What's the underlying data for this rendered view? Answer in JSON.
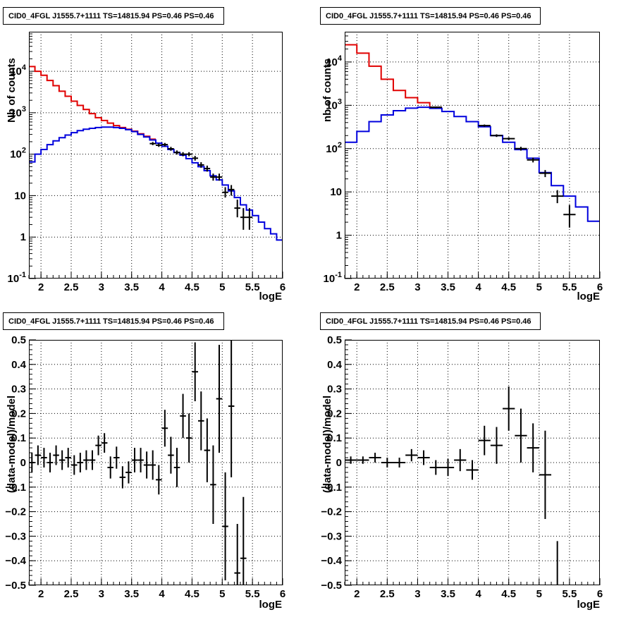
{
  "chart_data": [
    {
      "type": "line",
      "title": "CID0_4FGL J1555.7+1111 TS=14815.94 PS=0.46 PS=0.46",
      "xlabel": "logE",
      "ylabel": "Nb of counts",
      "xlim": [
        1.8,
        6.0
      ],
      "ylim": [
        0.1,
        90000
      ],
      "log_y": true,
      "grid": true,
      "x_ticks": [
        "2",
        "2.5",
        "3",
        "3.5",
        "4",
        "4.5",
        "5",
        "5.5",
        "6"
      ],
      "y_ticks": [
        "10^-1",
        "1",
        "10",
        "10^2",
        "10^3",
        "10^4"
      ],
      "bin_edges": [
        1.8,
        1.9,
        2.0,
        2.1,
        2.2,
        2.3,
        2.4,
        2.5,
        2.6,
        2.7,
        2.8,
        2.9,
        3.0,
        3.1,
        3.2,
        3.3,
        3.4,
        3.5,
        3.6,
        3.7,
        3.8,
        3.9,
        4.0,
        4.1,
        4.2,
        4.3,
        4.4,
        4.5,
        4.6,
        4.7,
        4.8,
        4.9,
        5.0,
        5.1,
        5.2,
        5.3,
        5.4,
        5.5,
        5.6,
        5.7,
        5.8,
        5.9,
        6.0
      ],
      "series": [
        {
          "kind": "step",
          "color": "#e00000",
          "values": [
            13000,
            10000,
            8000,
            6000,
            4500,
            3300,
            2500,
            1900,
            1500,
            1200,
            950,
            760,
            650,
            560,
            490,
            440,
            400,
            360,
            310,
            270,
            230
          ]
        },
        {
          "kind": "step",
          "color": "#0000dd",
          "values": [
            65,
            100,
            130,
            170,
            210,
            250,
            290,
            330,
            370,
            400,
            420,
            440,
            450,
            450,
            440,
            420,
            390,
            350,
            300,
            260,
            220,
            185,
            155,
            130,
            110,
            95,
            78,
            62,
            50,
            40,
            30,
            24,
            18,
            13,
            9,
            6,
            4.5,
            3.3,
            2.3,
            1.6,
            1.2,
            0.85
          ]
        },
        {
          "kind": "points",
          "color": "#000000",
          "xerr": 0.05,
          "points": [
            {
              "x": 3.85,
              "y": 180,
              "lo": 165,
              "hi": 197
            },
            {
              "x": 3.95,
              "y": 165,
              "lo": 150,
              "hi": 182
            },
            {
              "x": 4.05,
              "y": 170,
              "lo": 155,
              "hi": 187
            },
            {
              "x": 4.15,
              "y": 135,
              "lo": 121,
              "hi": 150
            },
            {
              "x": 4.25,
              "y": 110,
              "lo": 98,
              "hi": 123
            },
            {
              "x": 4.35,
              "y": 100,
              "lo": 89,
              "hi": 112
            },
            {
              "x": 4.45,
              "y": 100,
              "lo": 89,
              "hi": 112
            },
            {
              "x": 4.55,
              "y": 80,
              "lo": 70,
              "hi": 91
            },
            {
              "x": 4.65,
              "y": 55,
              "lo": 47,
              "hi": 64
            },
            {
              "x": 4.75,
              "y": 45,
              "lo": 38,
              "hi": 53
            },
            {
              "x": 4.85,
              "y": 28,
              "lo": 23,
              "hi": 34
            },
            {
              "x": 4.95,
              "y": 28,
              "lo": 23,
              "hi": 34
            },
            {
              "x": 5.05,
              "y": 12,
              "lo": 9,
              "hi": 16
            },
            {
              "x": 5.15,
              "y": 14,
              "lo": 10,
              "hi": 18
            },
            {
              "x": 5.25,
              "y": 5,
              "lo": 3,
              "hi": 8
            },
            {
              "x": 5.35,
              "y": 3,
              "lo": 1.5,
              "hi": 5
            },
            {
              "x": 5.45,
              "y": 3,
              "lo": 1.5,
              "hi": 5
            }
          ]
        }
      ]
    },
    {
      "type": "line",
      "title": "CID0_4FGL J1555.7+1111 TS=14815.94 PS=0.46 PS=0.46",
      "xlabel": "logE",
      "ylabel": "nb of counts",
      "xlim": [
        1.8,
        6.0
      ],
      "ylim": [
        0.1,
        50000
      ],
      "log_y": true,
      "grid": true,
      "x_ticks": [
        "2",
        "2.5",
        "3",
        "3.5",
        "4",
        "4.5",
        "5",
        "5.5",
        "6"
      ],
      "y_ticks": [
        "10^-1",
        "1",
        "10",
        "10^2",
        "10^3",
        "10^4"
      ],
      "bin_edges": [
        1.8,
        2.0,
        2.2,
        2.4,
        2.6,
        2.8,
        3.0,
        3.2,
        3.4,
        3.6,
        3.8,
        4.0,
        4.2,
        4.4,
        4.6,
        4.8,
        5.0,
        5.2,
        5.4,
        5.6,
        5.8,
        6.0
      ],
      "series": [
        {
          "kind": "step",
          "color": "#e00000",
          "values": [
            25000,
            16000,
            8000,
            4000,
            2200,
            1500,
            1150,
            900
          ]
        },
        {
          "kind": "step",
          "color": "#0000dd",
          "values": [
            140,
            250,
            420,
            600,
            750,
            860,
            900,
            850,
            720,
            550,
            420,
            320,
            200,
            140,
            95,
            60,
            28,
            14,
            8,
            4.5,
            2.1
          ]
        },
        {
          "kind": "points",
          "color": "#000000",
          "xerr": 0.1,
          "points": [
            {
              "x": 3.3,
              "y": 900,
              "lo": 860,
              "hi": 940
            },
            {
              "x": 4.1,
              "y": 340,
              "lo": 320,
              "hi": 360
            },
            {
              "x": 4.3,
              "y": 200,
              "lo": 186,
              "hi": 214
            },
            {
              "x": 4.5,
              "y": 170,
              "lo": 157,
              "hi": 183
            },
            {
              "x": 4.7,
              "y": 100,
              "lo": 90,
              "hi": 110
            },
            {
              "x": 4.9,
              "y": 55,
              "lo": 48,
              "hi": 62
            },
            {
              "x": 5.1,
              "y": 27,
              "lo": 22,
              "hi": 32
            },
            {
              "x": 5.3,
              "y": 8,
              "lo": 5.5,
              "hi": 11
            },
            {
              "x": 5.5,
              "y": 3,
              "lo": 1.5,
              "hi": 5
            }
          ]
        }
      ]
    },
    {
      "type": "scatter",
      "title": "CID0_4FGL J1555.7+1111 TS=14815.94 PS=0.46 PS=0.46",
      "xlabel": "logE",
      "ylabel": "(data-model)/model",
      "xlim": [
        1.8,
        6.0
      ],
      "ylim": [
        -0.5,
        0.5
      ],
      "grid": true,
      "x_ticks": [
        "2",
        "2.5",
        "3",
        "3.5",
        "4",
        "4.5",
        "5",
        "5.5",
        "6"
      ],
      "y_ticks": [
        "−0.5",
        "−0.4",
        "−0.3",
        "−0.2",
        "−0.1",
        "0",
        "0.1",
        "0.2",
        "0.3",
        "0.4",
        "0.5"
      ],
      "xerr": 0.05,
      "points": [
        {
          "x": 1.85,
          "y": 0.0,
          "err": 0.04
        },
        {
          "x": 1.95,
          "y": 0.03,
          "err": 0.04
        },
        {
          "x": 2.05,
          "y": 0.02,
          "err": 0.04
        },
        {
          "x": 2.15,
          "y": 0.0,
          "err": 0.04
        },
        {
          "x": 2.25,
          "y": 0.03,
          "err": 0.04
        },
        {
          "x": 2.35,
          "y": 0.01,
          "err": 0.04
        },
        {
          "x": 2.45,
          "y": 0.02,
          "err": 0.04
        },
        {
          "x": 2.55,
          "y": -0.01,
          "err": 0.04
        },
        {
          "x": 2.65,
          "y": 0.0,
          "err": 0.04
        },
        {
          "x": 2.75,
          "y": 0.01,
          "err": 0.04
        },
        {
          "x": 2.85,
          "y": 0.01,
          "err": 0.04
        },
        {
          "x": 2.95,
          "y": 0.07,
          "err": 0.04
        },
        {
          "x": 3.05,
          "y": 0.08,
          "err": 0.04
        },
        {
          "x": 3.15,
          "y": -0.02,
          "err": 0.045
        },
        {
          "x": 3.25,
          "y": 0.02,
          "err": 0.045
        },
        {
          "x": 3.35,
          "y": -0.06,
          "err": 0.045
        },
        {
          "x": 3.45,
          "y": -0.04,
          "err": 0.045
        },
        {
          "x": 3.55,
          "y": 0.01,
          "err": 0.05
        },
        {
          "x": 3.65,
          "y": 0.01,
          "err": 0.05
        },
        {
          "x": 3.75,
          "y": -0.01,
          "err": 0.055
        },
        {
          "x": 3.85,
          "y": -0.01,
          "err": 0.06
        },
        {
          "x": 3.95,
          "y": -0.07,
          "err": 0.06
        },
        {
          "x": 4.05,
          "y": 0.14,
          "err": 0.075
        },
        {
          "x": 4.15,
          "y": 0.03,
          "err": 0.075
        },
        {
          "x": 4.25,
          "y": -0.02,
          "err": 0.08
        },
        {
          "x": 4.35,
          "y": 0.19,
          "err": 0.09
        },
        {
          "x": 4.45,
          "y": 0.1,
          "err": 0.1
        },
        {
          "x": 4.55,
          "y": 0.37,
          "err": 0.12
        },
        {
          "x": 4.65,
          "y": 0.17,
          "err": 0.12
        },
        {
          "x": 4.75,
          "y": 0.05,
          "err": 0.13
        },
        {
          "x": 4.85,
          "y": -0.09,
          "err": 0.16
        },
        {
          "x": 4.95,
          "y": 0.26,
          "err": 0.22
        },
        {
          "x": 5.05,
          "y": -0.26,
          "err": 0.22
        },
        {
          "x": 5.15,
          "y": 0.23,
          "err": 0.29
        },
        {
          "x": 5.25,
          "y": -0.45,
          "err": 0.2
        },
        {
          "x": 5.35,
          "y": -0.39,
          "err": 0.25
        }
      ]
    },
    {
      "type": "scatter",
      "title": "CID0_4FGL J1555.7+1111 TS=14815.94 PS=0.46 PS=0.46",
      "xlabel": "logE",
      "ylabel": "(data-model)/model",
      "xlim": [
        1.8,
        6.0
      ],
      "ylim": [
        -0.5,
        0.5
      ],
      "grid": true,
      "x_ticks": [
        "2",
        "2.5",
        "3",
        "3.5",
        "4",
        "4.5",
        "5",
        "5.5",
        "6"
      ],
      "y_ticks": [
        "−0.5",
        "−0.4",
        "−0.3",
        "−0.2",
        "−0.1",
        "0",
        "0.1",
        "0.2",
        "0.3",
        "0.4",
        "0.5"
      ],
      "xerr": 0.1,
      "points": [
        {
          "x": 1.9,
          "y": 0.01,
          "err": 0.015
        },
        {
          "x": 2.1,
          "y": 0.01,
          "err": 0.015
        },
        {
          "x": 2.3,
          "y": 0.02,
          "err": 0.02
        },
        {
          "x": 2.5,
          "y": 0.0,
          "err": 0.02
        },
        {
          "x": 2.7,
          "y": 0.0,
          "err": 0.02
        },
        {
          "x": 2.9,
          "y": 0.03,
          "err": 0.025
        },
        {
          "x": 3.1,
          "y": 0.02,
          "err": 0.03
        },
        {
          "x": 3.3,
          "y": -0.02,
          "err": 0.03
        },
        {
          "x": 3.5,
          "y": -0.02,
          "err": 0.035
        },
        {
          "x": 3.7,
          "y": 0.01,
          "err": 0.045
        },
        {
          "x": 3.9,
          "y": -0.03,
          "err": 0.04
        },
        {
          "x": 4.1,
          "y": 0.09,
          "err": 0.06
        },
        {
          "x": 4.3,
          "y": 0.07,
          "err": 0.075
        },
        {
          "x": 4.5,
          "y": 0.22,
          "err": 0.09
        },
        {
          "x": 4.7,
          "y": 0.11,
          "err": 0.11
        },
        {
          "x": 4.9,
          "y": 0.06,
          "err": 0.1
        },
        {
          "x": 5.1,
          "y": -0.05,
          "err": 0.18
        },
        {
          "x": 5.3,
          "y": -0.5,
          "err": 0.18
        }
      ]
    }
  ]
}
